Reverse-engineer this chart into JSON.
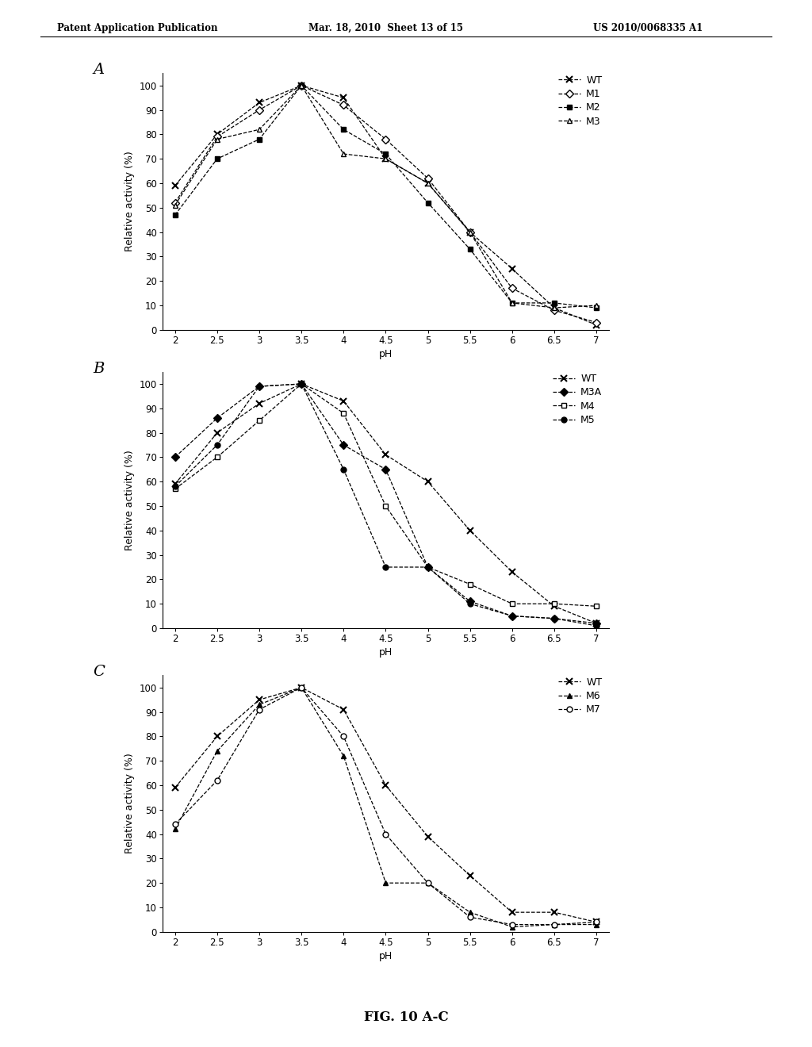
{
  "ph_values": [
    2,
    2.5,
    3,
    3.5,
    4,
    4.5,
    5,
    5.5,
    6,
    6.5,
    7
  ],
  "panel_A": {
    "label": "A",
    "series": {
      "WT": [
        59,
        80,
        93,
        100,
        95,
        70,
        60,
        40,
        25,
        9,
        2
      ],
      "M1": [
        52,
        79,
        90,
        100,
        92,
        78,
        62,
        40,
        17,
        8,
        3
      ],
      "M2": [
        47,
        70,
        78,
        100,
        82,
        72,
        52,
        33,
        11,
        11,
        9
      ],
      "M3": [
        51,
        78,
        82,
        100,
        72,
        70,
        60,
        40,
        11,
        9,
        10
      ]
    },
    "legend_labels": [
      "WT",
      "M1",
      "M2",
      "M3"
    ],
    "markers": [
      "x",
      "D",
      "s",
      "^"
    ],
    "fillstyles": [
      "none",
      "none",
      "full",
      "none"
    ]
  },
  "panel_B": {
    "label": "B",
    "series": {
      "WT": [
        59,
        80,
        92,
        100,
        93,
        71,
        60,
        40,
        23,
        9,
        2
      ],
      "M3A": [
        70,
        86,
        99,
        100,
        75,
        65,
        25,
        11,
        5,
        4,
        2
      ],
      "M4": [
        57,
        70,
        85,
        100,
        88,
        50,
        25,
        18,
        10,
        10,
        9
      ],
      "M5": [
        58,
        75,
        99,
        100,
        65,
        25,
        25,
        10,
        5,
        4,
        1
      ]
    },
    "legend_labels": [
      "WT",
      "M3A",
      "M4",
      "M5"
    ],
    "markers": [
      "x",
      "D",
      "s",
      "o"
    ],
    "fillstyles": [
      "none",
      "full",
      "none",
      "full"
    ]
  },
  "panel_C": {
    "label": "C",
    "series": {
      "WT": [
        59,
        80,
        95,
        100,
        91,
        60,
        39,
        23,
        8,
        8,
        4
      ],
      "M6": [
        42,
        74,
        93,
        100,
        72,
        20,
        20,
        8,
        2,
        3,
        3
      ],
      "M7": [
        44,
        62,
        91,
        100,
        80,
        40,
        20,
        6,
        3,
        3,
        4
      ]
    },
    "legend_labels": [
      "WT",
      "M6",
      "M7"
    ],
    "markers": [
      "x",
      "^",
      "o"
    ],
    "fillstyles": [
      "none",
      "full",
      "none"
    ]
  },
  "ylabel": "Relative activity (%)",
  "xlabel": "pH",
  "fig_caption": "FIG. 10 A-C",
  "header_left": "Patent Application Publication",
  "header_mid": "Mar. 18, 2010  Sheet 13 of 15",
  "header_right": "US 2010/0068335 A1",
  "ylim": [
    0,
    105
  ],
  "yticks": [
    0,
    10,
    20,
    30,
    40,
    50,
    60,
    70,
    80,
    90,
    100
  ],
  "xticks": [
    2,
    2.5,
    3,
    3.5,
    4,
    4.5,
    5,
    5.5,
    6,
    6.5,
    7
  ],
  "xtick_labels": [
    "2",
    "2.5",
    "3",
    "3.5",
    "4",
    "4.5",
    "5",
    "5.5",
    "6",
    "6.5",
    "7"
  ],
  "bg_color": "#ffffff"
}
